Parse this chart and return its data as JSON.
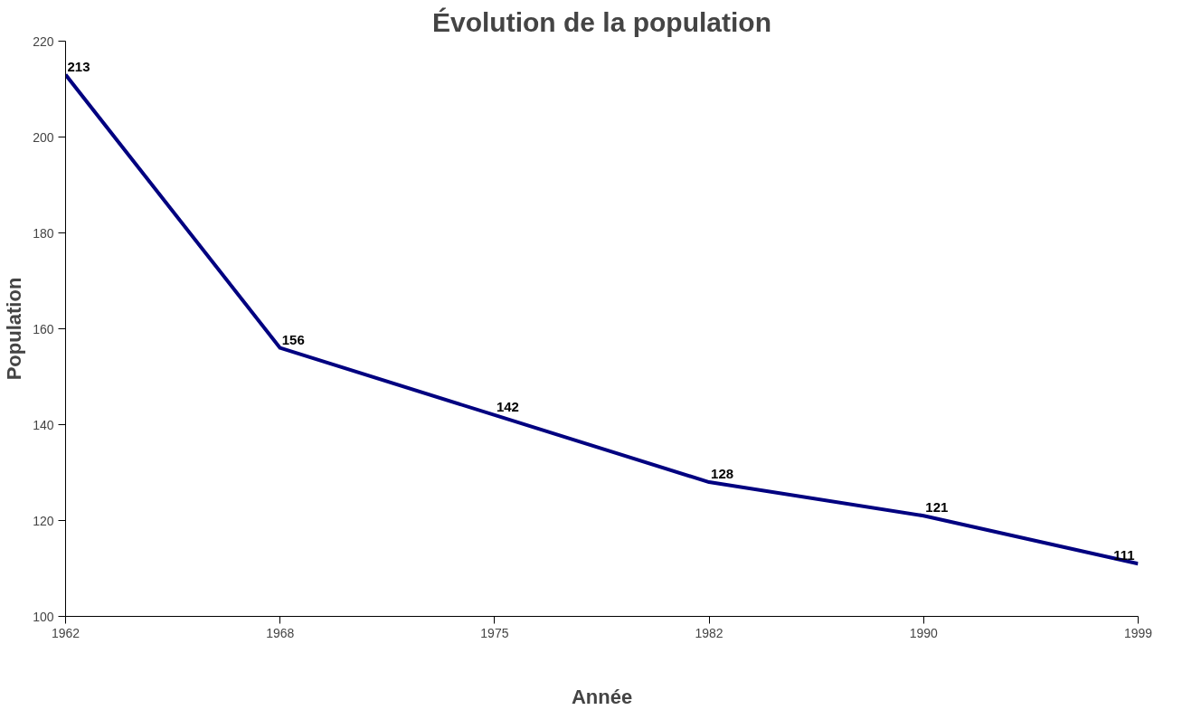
{
  "chart_data": {
    "type": "line",
    "title": "Évolution de la population",
    "xlabel": "Année",
    "ylabel": "Population",
    "categories": [
      "1962",
      "1968",
      "1975",
      "1982",
      "1990",
      "1999"
    ],
    "series": [
      {
        "color": "#000080",
        "values": [
          213,
          156,
          142,
          128,
          121,
          111
        ]
      }
    ],
    "ylim": [
      100,
      220
    ],
    "yticks": [
      100,
      120,
      140,
      160,
      180,
      200,
      220
    ],
    "grid": false,
    "data_labels": true,
    "marker": "none",
    "line_style": "solid"
  }
}
